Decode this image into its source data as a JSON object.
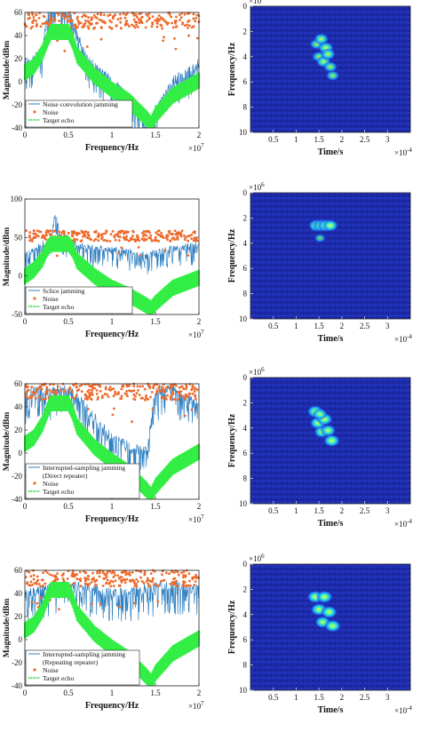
{
  "chart_data": [
    {
      "type": "line",
      "panel": "spectrum",
      "xlabel": "Frequency/Hz",
      "ylabel": "Magnitude/dBm",
      "x_exponent": "×10",
      "x_exponent_power": "7",
      "xlim": [
        0,
        2
      ],
      "ylim": [
        -40,
        60
      ],
      "xticks": [
        "0",
        "0.5",
        "1",
        "1.5",
        "2"
      ],
      "yticks": [
        "-40",
        "-20",
        "0",
        "20",
        "40",
        "60"
      ],
      "legend": [
        "Noise convolution jamming",
        "Noise",
        "Target echo"
      ],
      "legend_position": "bottom-left",
      "colors": {
        "jamming": "#2f7fc1",
        "noise": "#ee6a2a",
        "echo": "#33ee44"
      },
      "series": [
        {
          "name": "Noise convolution jamming",
          "x": [
            0,
            0.2,
            0.25,
            0.3,
            0.4,
            0.5,
            0.55,
            0.7,
            1.0,
            1.3,
            1.4,
            1.5,
            1.7,
            2.0
          ],
          "values": [
            20,
            30,
            60,
            72,
            75,
            70,
            55,
            25,
            5,
            -20,
            -35,
            -20,
            5,
            20
          ]
        },
        {
          "name": "Noise",
          "x": [
            0,
            0.5,
            1.0,
            1.5,
            2.0
          ],
          "values": [
            53,
            53,
            53,
            53,
            53
          ]
        },
        {
          "name": "Target echo",
          "x": [
            0,
            0.1,
            0.2,
            0.25,
            0.3,
            0.5,
            0.55,
            0.6,
            0.8,
            1.0,
            1.2,
            1.4,
            1.45,
            1.5,
            1.7,
            2.0
          ],
          "values": [
            15,
            20,
            32,
            42,
            50,
            50,
            42,
            30,
            12,
            0,
            -10,
            -25,
            -30,
            -22,
            -5,
            8
          ]
        }
      ]
    },
    {
      "type": "heatmap",
      "panel": "spectrogram",
      "xlabel": "Time/s",
      "ylabel": "Frequency/Hz",
      "x_exponent": "×10",
      "x_exponent_power": "-4",
      "y_exponent": "×10",
      "y_exponent_power": "6",
      "xlim": [
        0,
        3.5
      ],
      "ylim": [
        0,
        10
      ],
      "xticks": [
        "0.5",
        "1",
        "1.5",
        "2",
        "2.5",
        "3"
      ],
      "yticks": [
        "0",
        "2",
        "4",
        "6",
        "8",
        "10"
      ],
      "hotspots": [
        {
          "t": 1.45,
          "f": 3.0,
          "level": 0.7
        },
        {
          "t": 1.55,
          "f": 2.6,
          "level": 0.8
        },
        {
          "t": 1.65,
          "f": 3.3,
          "level": 0.9
        },
        {
          "t": 1.5,
          "f": 4.0,
          "level": 0.7
        },
        {
          "t": 1.6,
          "f": 4.4,
          "level": 0.8
        },
        {
          "t": 1.75,
          "f": 4.8,
          "level": 0.7
        },
        {
          "t": 1.7,
          "f": 3.8,
          "level": 0.8
        },
        {
          "t": 1.8,
          "f": 5.5,
          "level": 0.6
        }
      ]
    },
    {
      "type": "line",
      "panel": "spectrum",
      "xlabel": "Frequency/Hz",
      "ylabel": "Magnitude/dBm",
      "x_exponent": "×10",
      "x_exponent_power": "7",
      "xlim": [
        0,
        2
      ],
      "ylim": [
        -50,
        100
      ],
      "xticks": [
        "0",
        "0.5",
        "1",
        "1.5",
        "2"
      ],
      "yticks": [
        "-50",
        "0",
        "50",
        "100"
      ],
      "legend": [
        "Sclice jamming",
        "Noise",
        "Target echo"
      ],
      "legend_position": "bottom-left",
      "colors": {
        "jamming": "#2f7fc1",
        "noise": "#ee6a2a",
        "echo": "#33ee44"
      },
      "series": [
        {
          "name": "Sclice jamming",
          "x": [
            0,
            0.2,
            0.3,
            0.35,
            0.4,
            0.5,
            0.6,
            0.8,
            1.0,
            1.3,
            1.4,
            1.5,
            1.7,
            2.0
          ],
          "values": [
            30,
            45,
            55,
            85,
            60,
            52,
            45,
            40,
            38,
            35,
            30,
            35,
            40,
            45
          ]
        },
        {
          "name": "Noise",
          "x": [
            0,
            0.5,
            1.0,
            1.5,
            2.0
          ],
          "values": [
            52,
            52,
            52,
            52,
            52
          ]
        },
        {
          "name": "Target echo",
          "x": [
            0,
            0.1,
            0.2,
            0.25,
            0.3,
            0.5,
            0.55,
            0.6,
            0.8,
            1.0,
            1.2,
            1.4,
            1.45,
            1.5,
            1.7,
            2.0
          ],
          "values": [
            10,
            18,
            32,
            45,
            52,
            52,
            45,
            30,
            10,
            -5,
            -15,
            -28,
            -32,
            -25,
            -5,
            8
          ]
        }
      ]
    },
    {
      "type": "heatmap",
      "panel": "spectrogram",
      "xlabel": "Time/s",
      "ylabel": "Frequency/Hz",
      "x_exponent": "×10",
      "x_exponent_power": "-4",
      "y_exponent": "×10",
      "y_exponent_power": "6",
      "xlim": [
        0,
        3.5
      ],
      "ylim": [
        0,
        10
      ],
      "xticks": [
        "0.5",
        "1",
        "1.5",
        "2",
        "2.5",
        "3"
      ],
      "yticks": [
        "0",
        "2",
        "4",
        "6",
        "8",
        "10"
      ],
      "hotspots": [
        {
          "t": 1.45,
          "f": 2.6,
          "level": 1.0
        },
        {
          "t": 1.55,
          "f": 2.6,
          "level": 1.0
        },
        {
          "t": 1.65,
          "f": 2.6,
          "level": 1.0
        },
        {
          "t": 1.75,
          "f": 2.6,
          "level": 0.9
        },
        {
          "t": 1.52,
          "f": 3.6,
          "level": 0.35
        }
      ]
    },
    {
      "type": "line",
      "panel": "spectrum",
      "xlabel": "Frequency/Hz",
      "ylabel": "Magnitude/dBm",
      "x_exponent": "×10",
      "x_exponent_power": "7",
      "xlim": [
        0,
        2
      ],
      "ylim": [
        -40,
        60
      ],
      "xticks": [
        "0",
        "0.5",
        "1",
        "1.5",
        "2"
      ],
      "yticks": [
        "-40",
        "-20",
        "0",
        "20",
        "40",
        "60"
      ],
      "legend": [
        "Interrupted-sampling jamming",
        "(Direct repeater)",
        "Noise",
        "Target echo"
      ],
      "legend_position": "bottom-left",
      "colors": {
        "jamming": "#2f7fc1",
        "noise": "#ee6a2a",
        "echo": "#33ee44"
      },
      "series": [
        {
          "name": "Interrupted-sampling jamming",
          "x": [
            0,
            0.2,
            0.3,
            0.4,
            0.5,
            0.6,
            0.8,
            1.0,
            1.2,
            1.4,
            1.5,
            1.7,
            2.0
          ],
          "values": [
            55,
            60,
            58,
            60,
            58,
            55,
            35,
            20,
            10,
            5,
            58,
            60,
            45
          ]
        },
        {
          "name": "Noise",
          "x": [
            0,
            0.5,
            1.0,
            1.5,
            2.0
          ],
          "values": [
            53,
            53,
            53,
            53,
            53
          ]
        },
        {
          "name": "Target echo",
          "x": [
            0,
            0.1,
            0.2,
            0.25,
            0.3,
            0.5,
            0.55,
            0.6,
            0.8,
            1.0,
            1.2,
            1.4,
            1.45,
            1.5,
            1.7,
            2.0
          ],
          "values": [
            15,
            20,
            32,
            42,
            50,
            50,
            42,
            30,
            12,
            0,
            -10,
            -25,
            -30,
            -22,
            -5,
            8
          ]
        }
      ]
    },
    {
      "type": "heatmap",
      "panel": "spectrogram",
      "xlabel": "Time/s",
      "ylabel": "Frequency/Hz",
      "x_exponent": "×10",
      "x_exponent_power": "-4",
      "y_exponent": "×10",
      "y_exponent_power": "6",
      "xlim": [
        0,
        3.5
      ],
      "ylim": [
        0,
        10
      ],
      "xticks": [
        "0.5",
        "1",
        "1.5",
        "2",
        "2.5",
        "3"
      ],
      "yticks": [
        "0",
        "2",
        "4",
        "6",
        "8",
        "10"
      ],
      "hotspots": [
        {
          "t": 1.42,
          "f": 2.7,
          "level": 1.0
        },
        {
          "t": 1.48,
          "f": 3.6,
          "level": 1.0
        },
        {
          "t": 1.56,
          "f": 4.3,
          "level": 0.9
        },
        {
          "t": 1.62,
          "f": 3.3,
          "level": 1.0
        },
        {
          "t": 1.7,
          "f": 4.2,
          "level": 0.9
        },
        {
          "t": 1.78,
          "f": 5.0,
          "level": 1.0
        },
        {
          "t": 1.52,
          "f": 2.9,
          "level": 0.8
        }
      ]
    },
    {
      "type": "line",
      "panel": "spectrum",
      "xlabel": "Frequency/Hz",
      "ylabel": "Magnitude/dBm",
      "x_exponent": "×10",
      "x_exponent_power": "7",
      "xlim": [
        0,
        2
      ],
      "ylim": [
        -40,
        60
      ],
      "xticks": [
        "0",
        "0.5",
        "1",
        "1.5",
        "2"
      ],
      "yticks": [
        "-40",
        "-20",
        "0",
        "20",
        "40",
        "60"
      ],
      "legend": [
        "Interrupted-sampling jamming",
        "(Repeating repeater)",
        "Noise",
        "Target echo"
      ],
      "legend_position": "bottom-left",
      "colors": {
        "jamming": "#2f7fc1",
        "noise": "#ee6a2a",
        "echo": "#33ee44"
      },
      "series": [
        {
          "name": "Interrupted-sampling jamming",
          "x": [
            0,
            0.2,
            0.4,
            0.6,
            0.8,
            1.0,
            1.2,
            1.4,
            1.6,
            1.8,
            2.0
          ],
          "values": [
            45,
            48,
            52,
            50,
            48,
            45,
            45,
            48,
            52,
            50,
            48
          ]
        },
        {
          "name": "Noise",
          "x": [
            0,
            0.5,
            1.0,
            1.5,
            2.0
          ],
          "values": [
            53,
            53,
            53,
            53,
            53
          ]
        },
        {
          "name": "Target echo",
          "x": [
            0,
            0.1,
            0.2,
            0.25,
            0.3,
            0.5,
            0.55,
            0.6,
            0.8,
            1.0,
            1.2,
            1.4,
            1.45,
            1.5,
            1.7,
            2.0
          ],
          "values": [
            15,
            20,
            32,
            42,
            50,
            50,
            42,
            30,
            12,
            0,
            -10,
            -25,
            -30,
            -22,
            -5,
            8
          ]
        }
      ]
    },
    {
      "type": "heatmap",
      "panel": "spectrogram",
      "xlabel": "Time/s",
      "ylabel": "Frequency/Hz",
      "x_exponent": "×10",
      "x_exponent_power": "-4",
      "y_exponent": "×10",
      "y_exponent_power": "6",
      "xlim": [
        0,
        3.5
      ],
      "ylim": [
        0,
        10
      ],
      "xticks": [
        "0.5",
        "1",
        "1.5",
        "2",
        "2.5",
        "3"
      ],
      "yticks": [
        "0",
        "2",
        "4",
        "6",
        "8",
        "10"
      ],
      "hotspots": [
        {
          "t": 1.42,
          "f": 2.6,
          "level": 1.0
        },
        {
          "t": 1.62,
          "f": 2.6,
          "level": 1.0
        },
        {
          "t": 1.5,
          "f": 3.6,
          "level": 1.0
        },
        {
          "t": 1.72,
          "f": 3.8,
          "level": 1.0
        },
        {
          "t": 1.58,
          "f": 4.6,
          "level": 0.9
        },
        {
          "t": 1.8,
          "f": 4.9,
          "level": 1.0
        }
      ]
    }
  ]
}
